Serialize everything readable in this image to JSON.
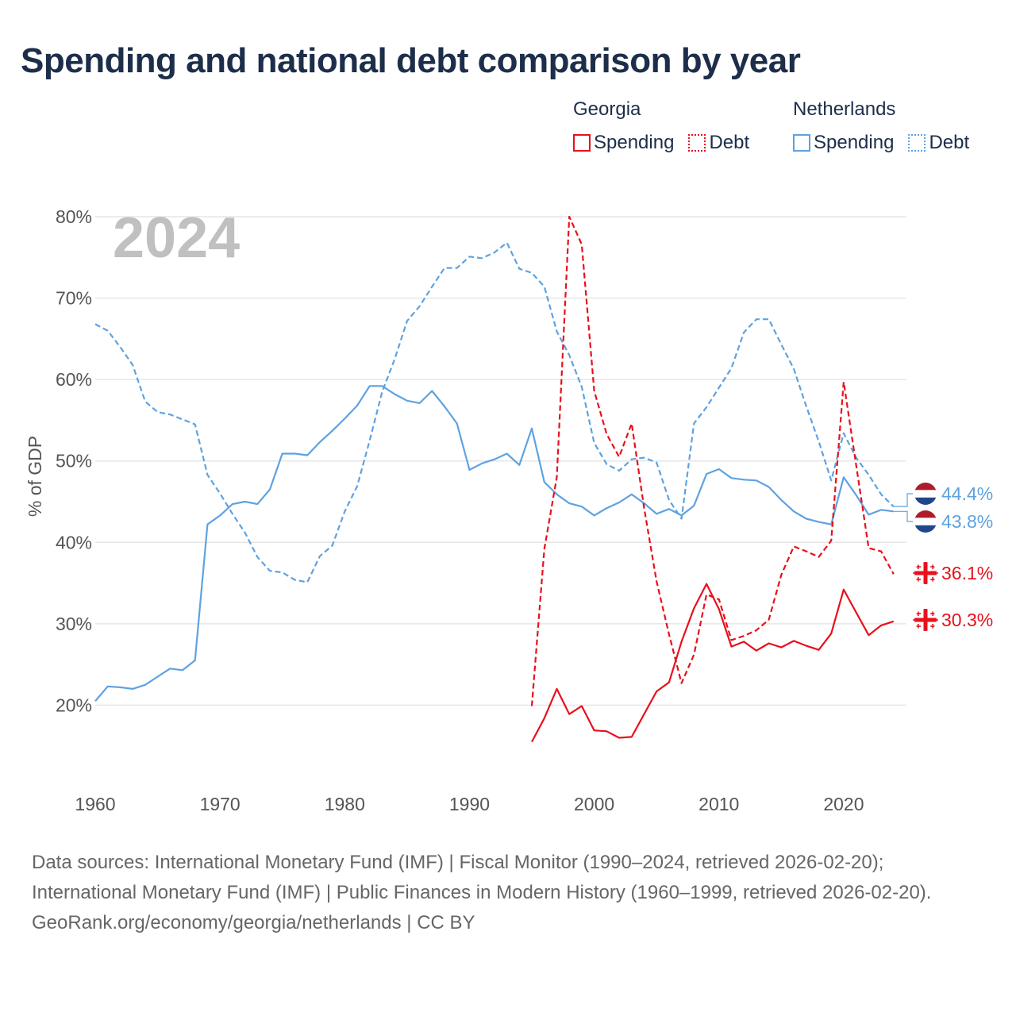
{
  "title": "Spending and national debt comparison by year",
  "legend": [
    {
      "group": "Georgia",
      "color": "#e8101c",
      "items": [
        {
          "label": "Spending",
          "style": "solid"
        },
        {
          "label": "Debt",
          "style": "dotted"
        }
      ]
    },
    {
      "group": "Netherlands",
      "color": "#5ea2e0",
      "items": [
        {
          "label": "Spending",
          "style": "solid"
        },
        {
          "label": "Debt",
          "style": "dotted"
        }
      ]
    }
  ],
  "footer": {
    "sources": "Data sources: International Monetary Fund (IMF) | Fiscal Monitor (1990–2024, retrieved 2026-02-20); International Monetary Fund (IMF) | Public Finances in Modern History (1960–1999, retrieved 2026-02-20).",
    "credit": "GeoRank.org/economy/georgia/netherlands | CC BY"
  },
  "chart_data": {
    "type": "line",
    "title": "Spending and national debt comparison by year",
    "year_label": "2024",
    "ylabel": "% of GDP",
    "xlabel": "",
    "xlim": [
      1960,
      2025
    ],
    "ylim": [
      10,
      80
    ],
    "x_ticks": [
      1960,
      1970,
      1980,
      1990,
      2000,
      2010,
      2020
    ],
    "y_ticks": [
      20,
      30,
      40,
      50,
      60,
      70,
      80
    ],
    "y_tick_labels": [
      "20%",
      "30%",
      "40%",
      "50%",
      "60%",
      "70%",
      "80%"
    ],
    "grid": true,
    "series": [
      {
        "name": "Netherlands Debt",
        "country": "Netherlands",
        "measure": "Debt",
        "color": "#5ea2e0",
        "dash": true,
        "end_label": "44.4%",
        "end_flag": "netherlands-flag-icon",
        "x": [
          1960,
          1961,
          1962,
          1963,
          1964,
          1965,
          1966,
          1967,
          1968,
          1969,
          1970,
          1971,
          1972,
          1973,
          1974,
          1975,
          1976,
          1977,
          1978,
          1979,
          1980,
          1981,
          1982,
          1983,
          1984,
          1985,
          1986,
          1987,
          1988,
          1989,
          1990,
          1991,
          1992,
          1993,
          1994,
          1995,
          1996,
          1997,
          1998,
          1999,
          2000,
          2001,
          2002,
          2003,
          2004,
          2005,
          2006,
          2007,
          2008,
          2009,
          2010,
          2011,
          2012,
          2013,
          2014,
          2015,
          2016,
          2017,
          2018,
          2019,
          2020,
          2021,
          2022,
          2023,
          2024
        ],
        "values": [
          66.8,
          66.0,
          64.0,
          61.8,
          57.3,
          56.0,
          55.7,
          55.1,
          54.5,
          48.3,
          46.0,
          43.5,
          41.2,
          38.2,
          36.5,
          36.3,
          35.4,
          35.1,
          38.3,
          39.6,
          43.8,
          46.9,
          52.5,
          58.5,
          62.5,
          67.2,
          69.0,
          71.4,
          73.7,
          73.7,
          75.1,
          74.9,
          75.6,
          76.8,
          73.6,
          73.1,
          71.4,
          65.9,
          63.0,
          59.1,
          52.2,
          49.6,
          48.8,
          50.2,
          50.4,
          49.8,
          45.2,
          42.9,
          54.6,
          56.6,
          59.0,
          61.4,
          65.8,
          67.4,
          67.4,
          64.3,
          61.3,
          56.7,
          52.4,
          47.6,
          53.4,
          50.4,
          48.3,
          45.9,
          44.4
        ]
      },
      {
        "name": "Netherlands Spending",
        "country": "Netherlands",
        "measure": "Spending",
        "color": "#5ea2e0",
        "dash": false,
        "end_label": "43.8%",
        "end_flag": "netherlands-flag-icon",
        "x": [
          1960,
          1961,
          1962,
          1963,
          1964,
          1965,
          1966,
          1967,
          1968,
          1969,
          1970,
          1971,
          1972,
          1973,
          1974,
          1975,
          1976,
          1977,
          1978,
          1979,
          1980,
          1981,
          1982,
          1983,
          1984,
          1985,
          1986,
          1987,
          1988,
          1989,
          1990,
          1991,
          1992,
          1993,
          1994,
          1995,
          1996,
          1997,
          1998,
          1999,
          2000,
          2001,
          2002,
          2003,
          2004,
          2005,
          2006,
          2007,
          2008,
          2009,
          2010,
          2011,
          2012,
          2013,
          2014,
          2015,
          2016,
          2017,
          2018,
          2019,
          2020,
          2021,
          2022,
          2023,
          2024
        ],
        "values": [
          20.5,
          22.3,
          22.2,
          22.0,
          22.5,
          23.5,
          24.5,
          24.3,
          25.5,
          42.2,
          43.3,
          44.7,
          45.0,
          44.7,
          46.5,
          50.9,
          50.9,
          50.7,
          52.3,
          53.7,
          55.2,
          56.8,
          59.2,
          59.2,
          58.2,
          57.4,
          57.1,
          58.6,
          56.7,
          54.6,
          48.9,
          49.7,
          50.2,
          50.9,
          49.5,
          54.0,
          47.4,
          45.9,
          44.8,
          44.4,
          43.3,
          44.2,
          44.9,
          45.9,
          44.8,
          43.5,
          44.1,
          43.3,
          44.5,
          48.4,
          49.0,
          47.9,
          47.7,
          47.6,
          46.8,
          45.2,
          43.8,
          42.9,
          42.5,
          42.2,
          48.0,
          45.8,
          43.4,
          44.0,
          43.8
        ]
      },
      {
        "name": "Georgia Debt",
        "country": "Georgia",
        "measure": "Debt",
        "color": "#e8101c",
        "dash": true,
        "end_label": "36.1%",
        "end_flag": "georgia-flag-icon",
        "x": [
          1995,
          1996,
          1997,
          1998,
          1999,
          2000,
          2001,
          2002,
          2003,
          2004,
          2005,
          2006,
          2007,
          2008,
          2009,
          2010,
          2011,
          2012,
          2013,
          2014,
          2015,
          2016,
          2017,
          2018,
          2019,
          2020,
          2021,
          2022,
          2023,
          2024
        ],
        "values": [
          19.9,
          39.2,
          48.0,
          80.0,
          76.6,
          58.6,
          53.3,
          50.5,
          54.6,
          44.2,
          35.2,
          28.7,
          22.7,
          26.2,
          33.6,
          33.0,
          28.0,
          28.5,
          29.2,
          30.5,
          36.0,
          39.5,
          38.9,
          38.2,
          40.2,
          59.7,
          49.5,
          39.3,
          38.9,
          36.1
        ]
      },
      {
        "name": "Georgia Spending",
        "country": "Georgia",
        "measure": "Spending",
        "color": "#e8101c",
        "dash": false,
        "end_label": "30.3%",
        "end_flag": "georgia-flag-icon",
        "x": [
          1995,
          1996,
          1997,
          1998,
          1999,
          2000,
          2001,
          2002,
          2003,
          2004,
          2005,
          2006,
          2007,
          2008,
          2009,
          2010,
          2011,
          2012,
          2013,
          2014,
          2015,
          2016,
          2017,
          2018,
          2019,
          2020,
          2021,
          2022,
          2023,
          2024
        ],
        "values": [
          15.5,
          18.4,
          22.0,
          18.9,
          19.9,
          16.9,
          16.8,
          16.0,
          16.1,
          18.9,
          21.7,
          22.8,
          27.8,
          31.9,
          34.9,
          31.8,
          27.2,
          27.8,
          26.7,
          27.6,
          27.1,
          27.9,
          27.3,
          26.8,
          28.8,
          34.2,
          31.4,
          28.6,
          29.8,
          30.3
        ]
      }
    ]
  }
}
